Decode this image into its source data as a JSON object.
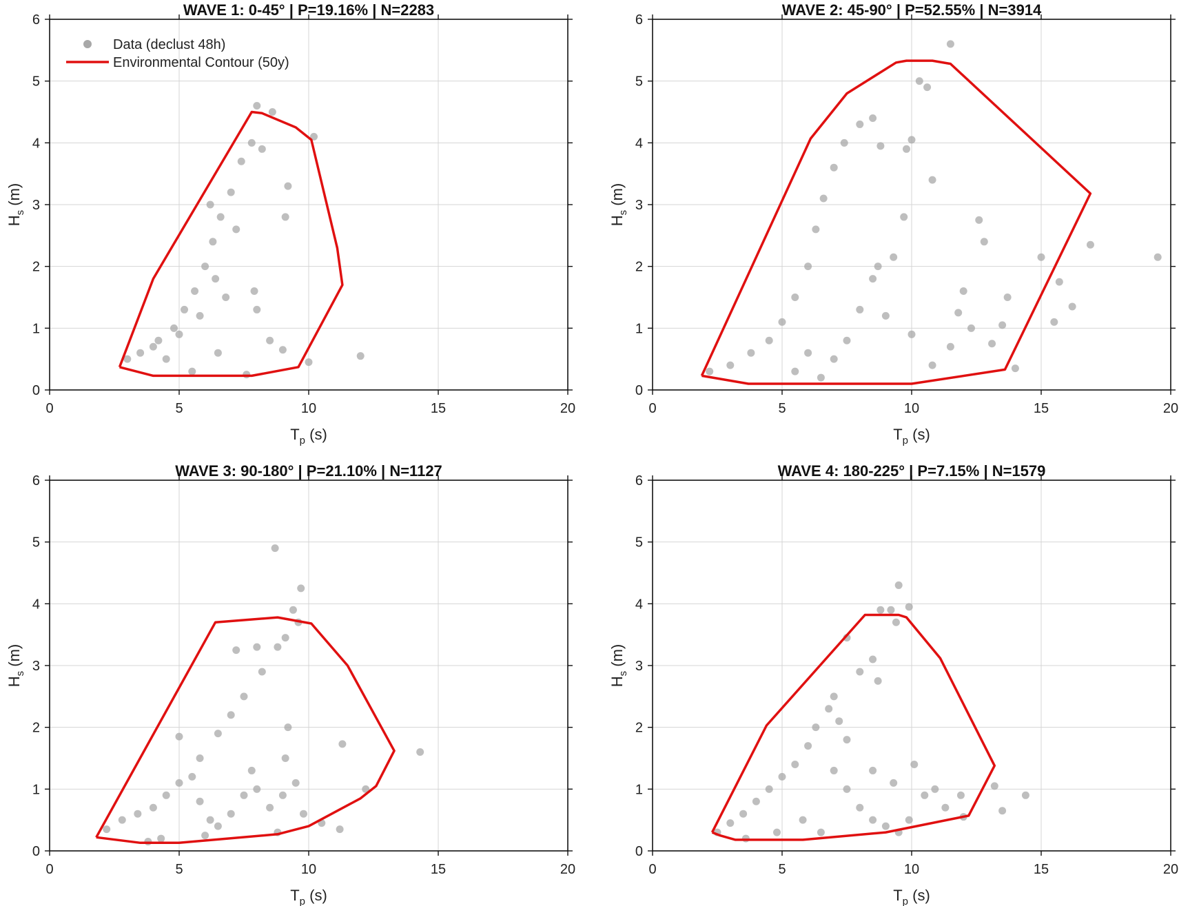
{
  "legend": {
    "data_label": "Data (declust 48h)",
    "contour_label": "Environmental Contour (50y)"
  },
  "colors": {
    "points": "#a8a8a8",
    "contour": "#e01010",
    "grid": "#d4d4d4",
    "axis": "#111111"
  },
  "chart_data": [
    {
      "type": "scatter",
      "title": "WAVE 1: 0-45° | P=19.16% | N=2283",
      "xlabel": "T",
      "xlabel_sub": "p",
      "xlabel_unit": " (s)",
      "ylabel": "H",
      "ylabel_sub": "s",
      "ylabel_unit": " (m)",
      "xlim": [
        0,
        20
      ],
      "ylim": [
        0,
        6
      ],
      "xticks": [
        0,
        5,
        10,
        15,
        20
      ],
      "yticks": [
        0,
        1,
        2,
        3,
        4,
        5,
        6
      ],
      "grid": true,
      "legend_position": "top-left",
      "points": [
        [
          3.0,
          0.5
        ],
        [
          3.5,
          0.6
        ],
        [
          4.2,
          0.8
        ],
        [
          4.8,
          1.0
        ],
        [
          5.2,
          1.3
        ],
        [
          5.6,
          1.6
        ],
        [
          6.0,
          2.0
        ],
        [
          6.3,
          2.4
        ],
        [
          6.6,
          2.8
        ],
        [
          7.0,
          3.2
        ],
        [
          7.4,
          3.7
        ],
        [
          7.8,
          4.0
        ],
        [
          8.2,
          3.9
        ],
        [
          8.0,
          4.6
        ],
        [
          8.6,
          4.5
        ],
        [
          10.2,
          4.1
        ],
        [
          9.2,
          3.3
        ],
        [
          9.1,
          2.8
        ],
        [
          7.9,
          1.6
        ],
        [
          8.0,
          1.3
        ],
        [
          8.5,
          0.8
        ],
        [
          9.0,
          0.65
        ],
        [
          10.0,
          0.45
        ],
        [
          12.0,
          0.55
        ],
        [
          6.5,
          0.6
        ],
        [
          5.5,
          0.3
        ],
        [
          7.6,
          0.25
        ],
        [
          4.5,
          0.5
        ],
        [
          4.0,
          0.7
        ],
        [
          5.8,
          1.2
        ],
        [
          6.8,
          1.5
        ],
        [
          7.2,
          2.6
        ],
        [
          6.2,
          3.0
        ],
        [
          5.0,
          0.9
        ],
        [
          6.4,
          1.8
        ]
      ],
      "contour": [
        [
          2.7,
          0.37
        ],
        [
          4.0,
          1.8
        ],
        [
          7.8,
          4.5
        ],
        [
          8.2,
          4.48
        ],
        [
          9.5,
          4.25
        ],
        [
          10.1,
          4.05
        ],
        [
          11.1,
          2.3
        ],
        [
          11.3,
          1.7
        ],
        [
          9.6,
          0.37
        ],
        [
          7.8,
          0.23
        ],
        [
          4.0,
          0.23
        ],
        [
          2.7,
          0.37
        ]
      ]
    },
    {
      "type": "scatter",
      "title": "WAVE 2: 45-90° | P=52.55% | N=3914",
      "xlabel": "T",
      "xlabel_sub": "p",
      "xlabel_unit": " (s)",
      "ylabel": "H",
      "ylabel_sub": "s",
      "ylabel_unit": " (m)",
      "xlim": [
        0,
        20
      ],
      "ylim": [
        0,
        6
      ],
      "xticks": [
        0,
        5,
        10,
        15,
        20
      ],
      "yticks": [
        0,
        1,
        2,
        3,
        4,
        5,
        6
      ],
      "grid": true,
      "points": [
        [
          2.2,
          0.3
        ],
        [
          3.0,
          0.4
        ],
        [
          3.8,
          0.6
        ],
        [
          4.5,
          0.8
        ],
        [
          5.0,
          1.1
        ],
        [
          5.5,
          1.5
        ],
        [
          6.0,
          2.0
        ],
        [
          6.3,
          2.6
        ],
        [
          6.6,
          3.1
        ],
        [
          7.0,
          3.6
        ],
        [
          7.4,
          4.0
        ],
        [
          8.0,
          4.3
        ],
        [
          8.5,
          4.4
        ],
        [
          8.8,
          3.95
        ],
        [
          9.8,
          3.9
        ],
        [
          10.0,
          4.05
        ],
        [
          10.8,
          3.4
        ],
        [
          10.3,
          5.0
        ],
        [
          10.6,
          4.9
        ],
        [
          11.5,
          5.6
        ],
        [
          9.7,
          2.8
        ],
        [
          12.6,
          2.75
        ],
        [
          12.8,
          2.4
        ],
        [
          16.9,
          2.35
        ],
        [
          19.5,
          2.15
        ],
        [
          15.0,
          2.15
        ],
        [
          15.7,
          1.75
        ],
        [
          16.2,
          1.35
        ],
        [
          15.5,
          1.1
        ],
        [
          14.0,
          0.35
        ],
        [
          13.5,
          1.05
        ],
        [
          13.7,
          1.5
        ],
        [
          12.0,
          1.6
        ],
        [
          12.3,
          1.0
        ],
        [
          11.5,
          0.7
        ],
        [
          10.8,
          0.4
        ],
        [
          10.0,
          0.9
        ],
        [
          9.0,
          1.2
        ],
        [
          8.5,
          1.8
        ],
        [
          8.0,
          1.3
        ],
        [
          7.5,
          0.8
        ],
        [
          7.0,
          0.5
        ],
        [
          6.5,
          0.2
        ],
        [
          6.0,
          0.6
        ],
        [
          5.5,
          0.3
        ],
        [
          9.3,
          2.15
        ],
        [
          8.7,
          2.0
        ],
        [
          11.8,
          1.25
        ],
        [
          13.1,
          0.75
        ]
      ],
      "contour": [
        [
          1.9,
          0.23
        ],
        [
          3.7,
          0.1
        ],
        [
          10.0,
          0.1
        ],
        [
          13.6,
          0.33
        ],
        [
          16.9,
          3.18
        ],
        [
          11.5,
          5.28
        ],
        [
          10.8,
          5.33
        ],
        [
          9.8,
          5.33
        ],
        [
          9.4,
          5.3
        ],
        [
          7.5,
          4.8
        ],
        [
          6.1,
          4.07
        ],
        [
          1.9,
          0.23
        ]
      ]
    },
    {
      "type": "scatter",
      "title": "WAVE 3: 90-180° | P=21.10% | N=1127",
      "xlabel": "T",
      "xlabel_sub": "p",
      "xlabel_unit": " (s)",
      "ylabel": "H",
      "ylabel_sub": "s",
      "ylabel_unit": " (m)",
      "xlim": [
        0,
        20
      ],
      "ylim": [
        0,
        6
      ],
      "xticks": [
        0,
        5,
        10,
        15,
        20
      ],
      "yticks": [
        0,
        1,
        2,
        3,
        4,
        5,
        6
      ],
      "grid": true,
      "points": [
        [
          2.2,
          0.35
        ],
        [
          2.8,
          0.5
        ],
        [
          3.4,
          0.6
        ],
        [
          4.0,
          0.7
        ],
        [
          4.5,
          0.9
        ],
        [
          5.0,
          1.1
        ],
        [
          5.5,
          1.2
        ],
        [
          5.8,
          0.8
        ],
        [
          6.2,
          0.5
        ],
        [
          6.5,
          0.4
        ],
        [
          7.0,
          0.6
        ],
        [
          7.5,
          0.9
        ],
        [
          8.0,
          1.0
        ],
        [
          8.5,
          0.7
        ],
        [
          9.0,
          0.9
        ],
        [
          9.5,
          1.1
        ],
        [
          9.8,
          0.6
        ],
        [
          10.5,
          0.45
        ],
        [
          11.2,
          0.35
        ],
        [
          11.3,
          1.73
        ],
        [
          12.2,
          1.0
        ],
        [
          14.3,
          1.6
        ],
        [
          8.7,
          4.9
        ],
        [
          9.7,
          4.25
        ],
        [
          9.4,
          3.9
        ],
        [
          9.1,
          3.45
        ],
        [
          9.6,
          3.7
        ],
        [
          8.8,
          3.3
        ],
        [
          8.0,
          3.3
        ],
        [
          7.2,
          3.25
        ],
        [
          7.5,
          2.5
        ],
        [
          7.0,
          2.2
        ],
        [
          6.5,
          1.9
        ],
        [
          8.2,
          2.9
        ],
        [
          9.2,
          2.0
        ],
        [
          9.1,
          1.5
        ],
        [
          7.8,
          1.3
        ],
        [
          5.0,
          1.85
        ],
        [
          5.8,
          1.5
        ],
        [
          4.3,
          0.2
        ],
        [
          3.8,
          0.15
        ],
        [
          6.0,
          0.25
        ],
        [
          8.8,
          0.3
        ]
      ],
      "contour": [
        [
          1.8,
          0.22
        ],
        [
          3.5,
          0.13
        ],
        [
          5.0,
          0.13
        ],
        [
          8.8,
          0.27
        ],
        [
          10.0,
          0.4
        ],
        [
          12.0,
          0.85
        ],
        [
          12.6,
          1.05
        ],
        [
          13.3,
          1.62
        ],
        [
          11.5,
          3.0
        ],
        [
          10.1,
          3.68
        ],
        [
          8.8,
          3.78
        ],
        [
          6.4,
          3.7
        ],
        [
          1.8,
          0.22
        ]
      ]
    },
    {
      "type": "scatter",
      "title": "WAVE 4: 180-225° | P=7.15% | N=1579",
      "xlabel": "T",
      "xlabel_sub": "p",
      "xlabel_unit": " (s)",
      "ylabel": "H",
      "ylabel_sub": "s",
      "ylabel_unit": " (m)",
      "xlim": [
        0,
        20
      ],
      "ylim": [
        0,
        6
      ],
      "xticks": [
        0,
        5,
        10,
        15,
        20
      ],
      "yticks": [
        0,
        1,
        2,
        3,
        4,
        5,
        6
      ],
      "grid": true,
      "points": [
        [
          2.5,
          0.3
        ],
        [
          3.0,
          0.45
        ],
        [
          3.5,
          0.6
        ],
        [
          4.0,
          0.8
        ],
        [
          4.5,
          1.0
        ],
        [
          5.0,
          1.2
        ],
        [
          5.5,
          1.4
        ],
        [
          6.0,
          1.7
        ],
        [
          6.3,
          2.0
        ],
        [
          6.8,
          2.3
        ],
        [
          7.2,
          2.1
        ],
        [
          7.5,
          1.8
        ],
        [
          7.0,
          1.3
        ],
        [
          7.5,
          1.0
        ],
        [
          8.0,
          0.7
        ],
        [
          8.5,
          0.5
        ],
        [
          9.0,
          0.4
        ],
        [
          9.5,
          0.3
        ],
        [
          9.9,
          0.5
        ],
        [
          9.5,
          4.3
        ],
        [
          9.9,
          3.95
        ],
        [
          8.8,
          3.9
        ],
        [
          9.2,
          3.9
        ],
        [
          9.4,
          3.7
        ],
        [
          7.5,
          3.45
        ],
        [
          8.5,
          3.1
        ],
        [
          8.0,
          2.9
        ],
        [
          7.0,
          2.5
        ],
        [
          8.7,
          2.75
        ],
        [
          10.1,
          1.4
        ],
        [
          10.9,
          1.0
        ],
        [
          11.9,
          0.9
        ],
        [
          13.2,
          1.05
        ],
        [
          14.4,
          0.9
        ],
        [
          13.5,
          0.65
        ],
        [
          12.0,
          0.55
        ],
        [
          11.3,
          0.7
        ],
        [
          10.5,
          0.9
        ],
        [
          9.3,
          1.1
        ],
        [
          8.5,
          1.3
        ],
        [
          6.5,
          0.3
        ],
        [
          5.8,
          0.5
        ],
        [
          4.8,
          0.3
        ],
        [
          3.6,
          0.2
        ]
      ],
      "contour": [
        [
          2.3,
          0.3
        ],
        [
          2.6,
          0.25
        ],
        [
          3.2,
          0.18
        ],
        [
          5.8,
          0.18
        ],
        [
          9.0,
          0.3
        ],
        [
          12.2,
          0.57
        ],
        [
          13.2,
          1.38
        ],
        [
          11.1,
          3.12
        ],
        [
          9.8,
          3.78
        ],
        [
          9.5,
          3.82
        ],
        [
          8.2,
          3.82
        ],
        [
          4.4,
          2.03
        ],
        [
          2.3,
          0.3
        ]
      ]
    }
  ]
}
